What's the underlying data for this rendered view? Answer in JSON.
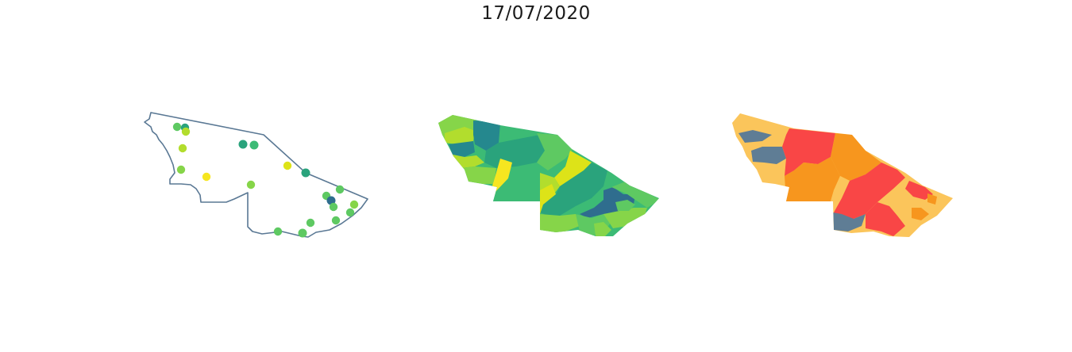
{
  "title": "17/07/2020",
  "colors": {
    "outline": "#5a7894",
    "viridis": [
      "#2f6d8e",
      "#25888e",
      "#2aa37c",
      "#3cbb75",
      "#5ec962",
      "#86d549",
      "#b2dd2d",
      "#dde318",
      "#f6e620"
    ],
    "risk": {
      "low": "#5f7d95",
      "moderate": "#fbc55b",
      "high": "#f7961e",
      "very_high": "#f94646"
    }
  },
  "maps": [
    {
      "name": "point-map",
      "style": "outline-with-points"
    },
    {
      "name": "viridis-choropleth",
      "style": "choropleth"
    },
    {
      "name": "risk-choropleth",
      "style": "choropleth"
    }
  ]
}
